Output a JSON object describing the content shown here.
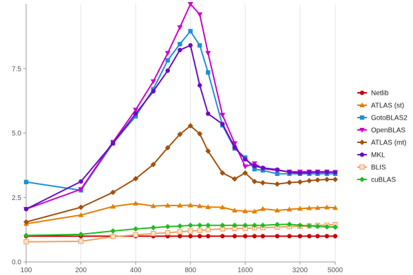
{
  "chart_data": {
    "type": "line",
    "xscale": "log",
    "x_ticks": [
      100,
      200,
      400,
      800,
      1600,
      3200,
      5000
    ],
    "x_tick_labels": [
      "100",
      "200",
      "400",
      "800",
      "1600",
      "3200",
      "5000"
    ],
    "y_ticks": [
      0,
      2.5,
      5,
      7.5
    ],
    "y_tick_labels": [
      "0.0",
      "2.5",
      "5.0",
      "7.5"
    ],
    "ylim": [
      0,
      10
    ],
    "grid": "vertical",
    "legend_position": "right",
    "title": "",
    "xlabel": "",
    "ylabel": "",
    "series": [
      {
        "name": "Netlib",
        "color": "#cc0000",
        "marker": "circle",
        "x": [
          100,
          200,
          300,
          400,
          500,
          600,
          700,
          800,
          900,
          1000,
          1200,
          1400,
          1600,
          1800,
          2000,
          2400,
          2800,
          3200,
          3600,
          4000,
          4500,
          5000
        ],
        "y": [
          1.0,
          1.0,
          1.0,
          1.0,
          1.0,
          1.0,
          1.0,
          1.0,
          1.0,
          1.0,
          1.0,
          1.0,
          1.0,
          1.0,
          1.0,
          1.0,
          1.0,
          1.0,
          1.0,
          1.0,
          1.0,
          1.0
        ]
      },
      {
        "name": "ATLAS (st)",
        "color": "#e67e00",
        "marker": "triangle-up",
        "x": [
          100,
          200,
          300,
          400,
          500,
          600,
          700,
          800,
          900,
          1000,
          1200,
          1400,
          1600,
          1800,
          2000,
          2400,
          2800,
          3200,
          3600,
          4000,
          4500,
          5000
        ],
        "y": [
          1.48,
          1.82,
          2.15,
          2.27,
          2.17,
          2.19,
          2.19,
          2.2,
          2.17,
          2.13,
          2.12,
          2.0,
          1.97,
          1.96,
          2.06,
          2.0,
          2.04,
          2.07,
          2.09,
          2.1,
          2.12,
          2.1
        ]
      },
      {
        "name": "GotoBLAS2",
        "color": "#1e8fd6",
        "marker": "square",
        "x": [
          100,
          200,
          300,
          400,
          500,
          600,
          700,
          800,
          900,
          1000,
          1200,
          1400,
          1600,
          1800,
          2000,
          2400,
          2800,
          3200,
          3600,
          4000,
          4500,
          5000
        ],
        "y": [
          3.1,
          2.78,
          4.6,
          5.65,
          6.7,
          7.82,
          8.45,
          8.95,
          8.4,
          7.35,
          5.3,
          4.4,
          4.05,
          3.6,
          3.55,
          3.42,
          3.42,
          3.42,
          3.42,
          3.42,
          3.42,
          3.42
        ]
      },
      {
        "name": "OpenBLAS",
        "color": "#cc00cc",
        "marker": "triangle-down",
        "x": [
          100,
          200,
          300,
          400,
          500,
          600,
          700,
          800,
          900,
          1000,
          1200,
          1400,
          1600,
          1800,
          2000,
          2400,
          2800,
          3200,
          3600,
          4000,
          4500,
          5000
        ],
        "y": [
          2.05,
          2.82,
          4.65,
          5.9,
          7.0,
          8.1,
          9.1,
          10.0,
          9.6,
          8.1,
          5.7,
          4.6,
          3.7,
          3.82,
          3.62,
          3.55,
          3.5,
          3.5,
          3.5,
          3.5,
          3.5,
          3.48
        ]
      },
      {
        "name": "ATLAS (mt)",
        "color": "#a0520f",
        "marker": "diamond",
        "x": [
          100,
          200,
          300,
          400,
          500,
          600,
          700,
          800,
          900,
          1000,
          1200,
          1400,
          1600,
          1800,
          2000,
          2400,
          2800,
          3200,
          3600,
          4000,
          4500,
          5000
        ],
        "y": [
          1.55,
          2.12,
          2.7,
          3.23,
          3.78,
          4.43,
          4.95,
          5.28,
          4.97,
          4.3,
          3.45,
          3.22,
          3.45,
          3.12,
          3.07,
          3.02,
          3.08,
          3.1,
          3.15,
          3.18,
          3.2,
          3.2
        ]
      },
      {
        "name": "MKL",
        "color": "#6a0cc4",
        "marker": "circle",
        "x": [
          100,
          200,
          300,
          400,
          500,
          600,
          700,
          800,
          900,
          1000,
          1200,
          1400,
          1600,
          1800,
          2000,
          2400,
          2800,
          3200,
          3600,
          4000,
          4500,
          5000
        ],
        "y": [
          2.05,
          3.12,
          4.6,
          5.75,
          6.62,
          7.42,
          8.22,
          8.4,
          6.85,
          5.75,
          5.35,
          4.45,
          3.98,
          3.72,
          3.65,
          3.58,
          3.48,
          3.45,
          3.47,
          3.48,
          3.48,
          3.48
        ]
      },
      {
        "name": "BLIS",
        "color": "#f0a060",
        "marker": "square-open",
        "x": [
          100,
          200,
          300,
          400,
          500,
          600,
          700,
          800,
          900,
          1000,
          1200,
          1400,
          1600,
          1800,
          2000,
          2400,
          2800,
          3200,
          3600,
          4000,
          4500,
          5000
        ],
        "y": [
          0.78,
          0.8,
          0.98,
          1.05,
          1.1,
          1.13,
          1.17,
          1.2,
          1.22,
          1.25,
          1.28,
          1.3,
          1.3,
          1.32,
          1.33,
          1.35,
          1.37,
          1.38,
          1.4,
          1.42,
          1.43,
          1.45
        ]
      },
      {
        "name": "cuBLAS",
        "color": "#22bb22",
        "marker": "diamond",
        "x": [
          100,
          200,
          300,
          400,
          500,
          600,
          700,
          800,
          900,
          1000,
          1200,
          1400,
          1600,
          1800,
          2000,
          2400,
          2800,
          3200,
          3600,
          4000,
          4500,
          5000
        ],
        "y": [
          1.03,
          1.07,
          1.2,
          1.28,
          1.33,
          1.37,
          1.39,
          1.42,
          1.42,
          1.42,
          1.42,
          1.42,
          1.42,
          1.42,
          1.42,
          1.45,
          1.46,
          1.42,
          1.4,
          1.38,
          1.36,
          1.35
        ]
      }
    ]
  }
}
